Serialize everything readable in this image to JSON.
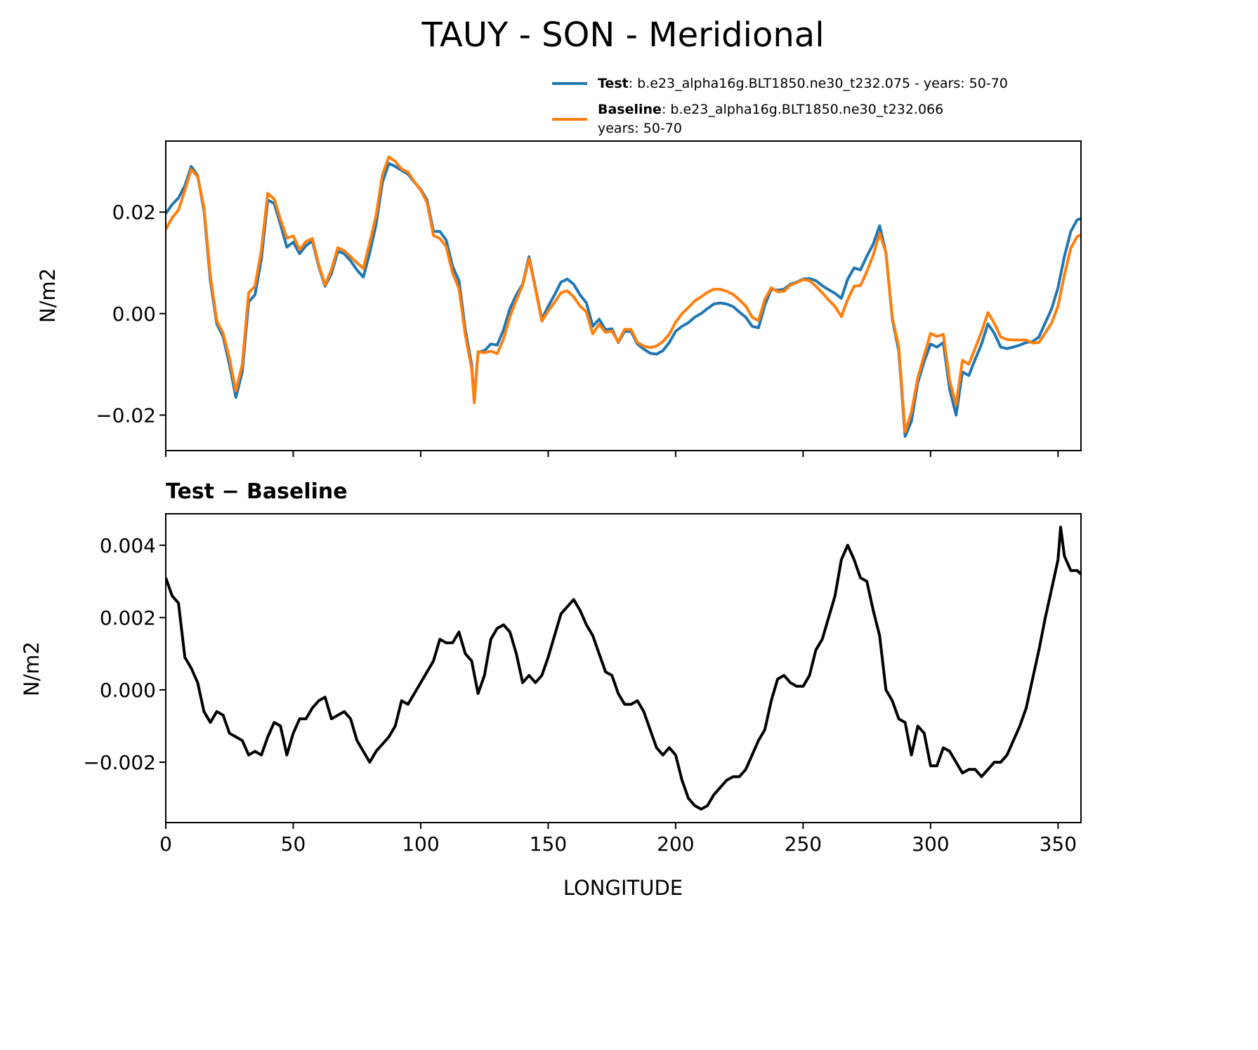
{
  "title": "TAUY - SON - Meridional",
  "legend": {
    "test_label": "Test",
    "test_text": ": b.e23_alpha16g.BLT1850.ne30_t232.075 - years: 50-70",
    "baseline_label": "Baseline",
    "baseline_text": ": b.e23_alpha16g.BLT1850.ne30_t232.066",
    "baseline_text2": "years: 50-70"
  },
  "colors": {
    "test": "#1f77b4",
    "baseline": "#ff7f0e",
    "difference": "#000000"
  },
  "chart_data": [
    {
      "type": "line",
      "title": "",
      "xlabel": "",
      "ylabel": "N/m2",
      "xlim": [
        0,
        359
      ],
      "ylim": [
        -0.027,
        0.034
      ],
      "yticks": [
        -0.02,
        0.0,
        0.02
      ],
      "ytick_labels": [
        "−0.02",
        "0.00",
        "0.02"
      ],
      "xticks": [
        0,
        50,
        100,
        150,
        200,
        250,
        300,
        350
      ],
      "grid": false,
      "legend_position": "top-right, above axes",
      "x": [
        0,
        2.5,
        5,
        7.5,
        10,
        12.5,
        15,
        17.5,
        20,
        22.5,
        25,
        27.5,
        30,
        32.5,
        35,
        37.5,
        40,
        42.5,
        45,
        47.5,
        50,
        52.5,
        55,
        57.5,
        60,
        62.5,
        65,
        67.5,
        70,
        72.5,
        75,
        77.5,
        80,
        82.5,
        85,
        87.5,
        90,
        92.5,
        95,
        97.5,
        100,
        102.5,
        105,
        107.5,
        110,
        112.5,
        115,
        117.5,
        120,
        121,
        122.5,
        125,
        127.5,
        130,
        132.5,
        135,
        137.5,
        140,
        142.5,
        145,
        147.5,
        150,
        152.5,
        155,
        157.5,
        160,
        162.5,
        165,
        167.5,
        170,
        172.5,
        175,
        177.5,
        180,
        182.5,
        185,
        187.5,
        190,
        192.5,
        195,
        197.5,
        200,
        202.5,
        205,
        207.5,
        210,
        212.5,
        215,
        217.5,
        220,
        222.5,
        225,
        227.5,
        230,
        232.5,
        235,
        237.5,
        240,
        242.5,
        245,
        247.5,
        250,
        252.5,
        255,
        257.5,
        260,
        262.5,
        265,
        267.5,
        270,
        272.5,
        275,
        277.5,
        280,
        282.5,
        285,
        287.5,
        290,
        292.5,
        295,
        297.5,
        300,
        302.5,
        305,
        307.5,
        310,
        312.5,
        315,
        317.5,
        320,
        322.5,
        325,
        327.5,
        330,
        332.5,
        335,
        337.5,
        340,
        342.5,
        345,
        347.5,
        350,
        352.5,
        355,
        357.5,
        359
      ],
      "series": [
        {
          "name": "Test",
          "values": [
            0.0197,
            0.0215,
            0.0228,
            0.0252,
            0.029,
            0.0272,
            0.0203,
            0.0065,
            -0.002,
            -0.0046,
            -0.0101,
            -0.0165,
            -0.0115,
            0.0023,
            0.0037,
            0.0107,
            0.0224,
            0.0217,
            0.0176,
            0.0131,
            0.0141,
            0.0118,
            0.0134,
            0.0143,
            0.0093,
            0.0054,
            0.0079,
            0.0123,
            0.0118,
            0.0104,
            0.0086,
            0.0072,
            0.012,
            0.0176,
            0.0259,
            0.0296,
            0.029,
            0.0282,
            0.0275,
            0.0259,
            0.0245,
            0.0224,
            0.0162,
            0.0162,
            0.0145,
            0.0093,
            0.0065,
            -0.0032,
            -0.0101,
            -0.0173,
            -0.0076,
            -0.0073,
            -0.006,
            -0.0062,
            -0.0032,
            0.001,
            0.0037,
            0.0058,
            0.0112,
            0.0051,
            -0.0011,
            0.0014,
            0.0037,
            0.0062,
            0.0068,
            0.0058,
            0.0037,
            0.0021,
            -0.0025,
            -0.0011,
            -0.0032,
            -0.003,
            -0.0057,
            -0.0035,
            -0.0035,
            -0.006,
            -0.007,
            -0.0078,
            -0.008,
            -0.0073,
            -0.0057,
            -0.0035,
            -0.0025,
            -0.0018,
            -0.0007,
            0.0,
            0.001,
            0.0019,
            0.0021,
            0.0019,
            0.0014,
            0.0003,
            -0.0007,
            -0.0025,
            -0.0028,
            0.0017,
            0.0048,
            0.0046,
            0.0048,
            0.0058,
            0.0062,
            0.0068,
            0.0069,
            0.0065,
            0.0055,
            0.0047,
            0.004,
            0.003,
            0.0068,
            0.009,
            0.0086,
            0.0113,
            0.0137,
            0.0173,
            0.012,
            -0.0011,
            -0.0073,
            -0.0242,
            -0.0212,
            -0.0136,
            -0.0094,
            -0.006,
            -0.0066,
            -0.0057,
            -0.015,
            -0.02,
            -0.0115,
            -0.0122,
            -0.009,
            -0.006,
            -0.002,
            -0.0039,
            -0.0066,
            -0.0069,
            -0.0066,
            -0.0062,
            -0.0057,
            -0.0055,
            -0.0046,
            -0.0018,
            0.001,
            0.0051,
            0.0113,
            0.0162,
            0.0185,
            0.0187
          ]
        },
        {
          "name": "Baseline",
          "values": [
            0.0166,
            0.0189,
            0.0204,
            0.0243,
            0.0284,
            0.027,
            0.0209,
            0.0074,
            -0.0014,
            -0.0039,
            -0.0089,
            -0.0152,
            -0.0101,
            0.0041,
            0.0054,
            0.0125,
            0.0237,
            0.0226,
            0.0186,
            0.0149,
            0.0153,
            0.0126,
            0.0142,
            0.0148,
            0.0096,
            0.0056,
            0.0087,
            0.013,
            0.0124,
            0.0112,
            0.01,
            0.0089,
            0.014,
            0.0193,
            0.0274,
            0.0309,
            0.03,
            0.0285,
            0.0279,
            0.026,
            0.0243,
            0.0219,
            0.0154,
            0.0148,
            0.0132,
            0.008,
            0.0049,
            -0.0042,
            -0.0109,
            -0.0176,
            -0.0075,
            -0.0077,
            -0.0074,
            -0.0079,
            -0.005,
            -0.0006,
            0.0027,
            0.0056,
            0.0108,
            0.0049,
            -0.0015,
            0.0005,
            0.0022,
            0.0041,
            0.0045,
            0.0033,
            0.0015,
            0.0003,
            -0.004,
            -0.0021,
            -0.0037,
            -0.0034,
            -0.0056,
            -0.0031,
            -0.0031,
            -0.0057,
            -0.0064,
            -0.0067,
            -0.0064,
            -0.0055,
            -0.0041,
            -0.0017,
            0.0,
            0.0012,
            0.0025,
            0.0033,
            0.0042,
            0.0048,
            0.0048,
            0.0044,
            0.0038,
            0.0027,
            0.0015,
            -0.0007,
            -0.0014,
            0.0028,
            0.0051,
            0.0043,
            0.0044,
            0.0056,
            0.0061,
            0.0067,
            0.0065,
            0.0054,
            0.0041,
            0.0027,
            0.0014,
            -0.0006,
            0.0028,
            0.0054,
            0.0055,
            0.0083,
            0.0115,
            0.0158,
            0.012,
            -0.0008,
            -0.0065,
            -0.0233,
            -0.0194,
            -0.0126,
            -0.0082,
            -0.0039,
            -0.0045,
            -0.0041,
            -0.0133,
            -0.018,
            -0.0092,
            -0.01,
            -0.0068,
            -0.0036,
            0.0002,
            -0.0019,
            -0.0046,
            -0.0051,
            -0.0052,
            -0.0052,
            -0.0052,
            -0.0058,
            -0.0057,
            -0.0038,
            -0.0018,
            0.0015,
            0.0076,
            0.0129,
            0.0152,
            0.0155
          ]
        }
      ]
    },
    {
      "type": "line",
      "title": "Test − Baseline",
      "xlabel": "LONGITUDE",
      "ylabel": "N/m2",
      "xlim": [
        0,
        359
      ],
      "ylim": [
        -0.00367,
        0.00487
      ],
      "yticks": [
        -0.002,
        0.0,
        0.002,
        0.004
      ],
      "ytick_labels": [
        "−0.002",
        "0.000",
        "0.002",
        "0.004"
      ],
      "xticks": [
        0,
        50,
        100,
        150,
        200,
        250,
        300,
        350
      ],
      "xtick_labels": [
        "0",
        "50",
        "100",
        "150",
        "200",
        "250",
        "300",
        "350"
      ],
      "grid": false,
      "x": [
        0,
        2.5,
        5,
        7.5,
        10,
        12.5,
        15,
        17.5,
        20,
        22.5,
        25,
        27.5,
        30,
        32.5,
        35,
        37.5,
        40,
        42.5,
        45,
        47.5,
        50,
        52.5,
        55,
        57.5,
        60,
        62.5,
        65,
        67.5,
        70,
        72.5,
        75,
        77.5,
        80,
        82.5,
        85,
        87.5,
        90,
        92.5,
        95,
        97.5,
        100,
        102.5,
        105,
        107.5,
        110,
        112.5,
        115,
        117.5,
        120,
        122.5,
        125,
        127.5,
        130,
        132.5,
        135,
        137.5,
        140,
        142.5,
        145,
        147.5,
        150,
        152.5,
        155,
        157.5,
        160,
        162.5,
        165,
        167.5,
        170,
        172.5,
        175,
        177.5,
        180,
        182.5,
        185,
        187.5,
        190,
        192.5,
        195,
        197.5,
        200,
        202.5,
        205,
        207.5,
        210,
        212.5,
        215,
        217.5,
        220,
        222.5,
        225,
        227.5,
        230,
        232.5,
        235,
        237.5,
        240,
        242.5,
        245,
        247.5,
        250,
        252.5,
        255,
        257.5,
        260,
        262.5,
        265,
        267.5,
        270,
        272.5,
        275,
        277.5,
        280,
        282.5,
        285,
        287.5,
        290,
        292.5,
        295,
        297.5,
        300,
        302.5,
        305,
        307.5,
        310,
        312.5,
        315,
        317.5,
        320,
        322.5,
        325,
        327.5,
        330,
        332.5,
        335,
        337.5,
        340,
        342.5,
        345,
        347.5,
        350,
        351,
        352.5,
        355,
        357.5,
        359
      ],
      "series": [
        {
          "values": [
            0.0031,
            0.0026,
            0.0024,
            0.0009,
            0.0006,
            0.0002,
            -0.0006,
            -0.0009,
            -0.0006,
            -0.0007,
            -0.0012,
            -0.0013,
            -0.0014,
            -0.0018,
            -0.0017,
            -0.0018,
            -0.0013,
            -0.0009,
            -0.001,
            -0.0018,
            -0.0012,
            -0.0008,
            -0.0008,
            -0.0005,
            -0.0003,
            -0.0002,
            -0.0008,
            -0.0007,
            -0.0006,
            -0.0008,
            -0.0014,
            -0.0017,
            -0.002,
            -0.0017,
            -0.0015,
            -0.0013,
            -0.001,
            -0.0003,
            -0.0004,
            -0.0001,
            0.0002,
            0.0005,
            0.0008,
            0.0014,
            0.0013,
            0.0013,
            0.0016,
            0.001,
            0.0008,
            -0.0001,
            0.0004,
            0.0014,
            0.0017,
            0.0018,
            0.0016,
            0.001,
            0.0002,
            0.0004,
            0.0002,
            0.0004,
            0.0009,
            0.0015,
            0.0021,
            0.0023,
            0.0025,
            0.0022,
            0.0018,
            0.0015,
            0.001,
            0.0005,
            0.0004,
            -0.0001,
            -0.0004,
            -0.0004,
            -0.0003,
            -0.0006,
            -0.0011,
            -0.0016,
            -0.0018,
            -0.0016,
            -0.0018,
            -0.0025,
            -0.003,
            -0.0032,
            -0.0033,
            -0.0032,
            -0.0029,
            -0.0027,
            -0.0025,
            -0.0024,
            -0.0024,
            -0.0022,
            -0.0018,
            -0.0014,
            -0.0011,
            -0.0003,
            0.0003,
            0.0004,
            0.0002,
            0.0001,
            0.0001,
            0.0004,
            0.0011,
            0.0014,
            0.002,
            0.0026,
            0.0036,
            0.004,
            0.0036,
            0.0031,
            0.003,
            0.0022,
            0.0015,
            0.0,
            -0.0003,
            -0.0008,
            -0.0009,
            -0.0018,
            -0.001,
            -0.0012,
            -0.0021,
            -0.0021,
            -0.0016,
            -0.0017,
            -0.002,
            -0.0023,
            -0.0022,
            -0.0022,
            -0.0024,
            -0.0022,
            -0.002,
            -0.002,
            -0.0018,
            -0.0014,
            -0.001,
            -0.0005,
            0.0003,
            0.0011,
            0.002,
            0.0028,
            0.0036,
            0.0045,
            0.0037,
            0.0033,
            0.0033,
            0.0032
          ]
        }
      ]
    }
  ]
}
